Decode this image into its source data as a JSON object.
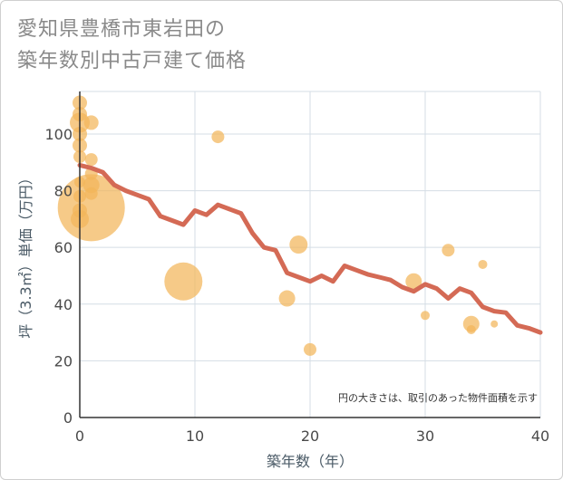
{
  "title_line1": "愛知県豊橋市東岩田の",
  "title_line2": "築年数別中古戸建て価格",
  "chart_data": {
    "type": "scatter",
    "title": "愛知県豊橋市東岩田の築年数別中古戸建て価格",
    "xlabel": "築年数（年）",
    "ylabel": "坪（3.3㎡）単価（万円）",
    "xlim": [
      0,
      40
    ],
    "ylim": [
      0,
      115
    ],
    "xticks": [
      0,
      10,
      20,
      30,
      40
    ],
    "yticks": [
      0,
      20,
      40,
      60,
      80,
      100
    ],
    "grid": true,
    "annotation": "円の大きさは、取引のあった物件面積を示す",
    "colors": {
      "bubble": "#f2b65a",
      "line": "#d46a55",
      "grid": "#d4dde5",
      "axis": "#333333"
    },
    "bubbles": [
      {
        "x": 0,
        "y": 111,
        "size": 8
      },
      {
        "x": 0,
        "y": 107,
        "size": 8
      },
      {
        "x": 0,
        "y": 104,
        "size": 11
      },
      {
        "x": 0,
        "y": 100,
        "size": 8
      },
      {
        "x": 0,
        "y": 96,
        "size": 8
      },
      {
        "x": 0,
        "y": 92,
        "size": 7
      },
      {
        "x": 0,
        "y": 83,
        "size": 6
      },
      {
        "x": 0,
        "y": 78,
        "size": 7
      },
      {
        "x": 0,
        "y": 73,
        "size": 8
      },
      {
        "x": 0,
        "y": 70,
        "size": 10
      },
      {
        "x": 1,
        "y": 104,
        "size": 8
      },
      {
        "x": 1,
        "y": 91,
        "size": 7
      },
      {
        "x": 1,
        "y": 86,
        "size": 7
      },
      {
        "x": 1,
        "y": 82,
        "size": 9
      },
      {
        "x": 1,
        "y": 79,
        "size": 7
      },
      {
        "x": 1,
        "y": 74,
        "size": 37
      },
      {
        "x": 9,
        "y": 48,
        "size": 21
      },
      {
        "x": 12,
        "y": 99,
        "size": 7
      },
      {
        "x": 18,
        "y": 42,
        "size": 9
      },
      {
        "x": 19,
        "y": 61,
        "size": 10
      },
      {
        "x": 20,
        "y": 24,
        "size": 7
      },
      {
        "x": 29,
        "y": 48,
        "size": 9
      },
      {
        "x": 30,
        "y": 36,
        "size": 5
      },
      {
        "x": 32,
        "y": 59,
        "size": 7
      },
      {
        "x": 34,
        "y": 33,
        "size": 9
      },
      {
        "x": 34,
        "y": 31,
        "size": 5
      },
      {
        "x": 35,
        "y": 54,
        "size": 5
      },
      {
        "x": 36,
        "y": 33,
        "size": 4
      }
    ],
    "line": {
      "x": [
        0,
        1,
        2,
        3,
        4,
        5,
        6,
        7,
        8,
        9,
        10,
        11,
        12,
        13,
        14,
        15,
        16,
        17,
        18,
        19,
        20,
        21,
        22,
        23,
        24,
        25,
        26,
        27,
        28,
        29,
        30,
        31,
        32,
        33,
        34,
        35,
        36,
        37,
        38,
        39,
        40
      ],
      "y": [
        89,
        88,
        86.5,
        82,
        80,
        78.5,
        77,
        71,
        69.5,
        68,
        73,
        71.5,
        75,
        73.5,
        72,
        65,
        60,
        59,
        51,
        49.5,
        48,
        50,
        48,
        53.5,
        52,
        50.5,
        49.5,
        48.5,
        46,
        44.5,
        47,
        45.5,
        42,
        45.5,
        44,
        39,
        37.5,
        37,
        32.5,
        31.5,
        30
      ]
    }
  }
}
